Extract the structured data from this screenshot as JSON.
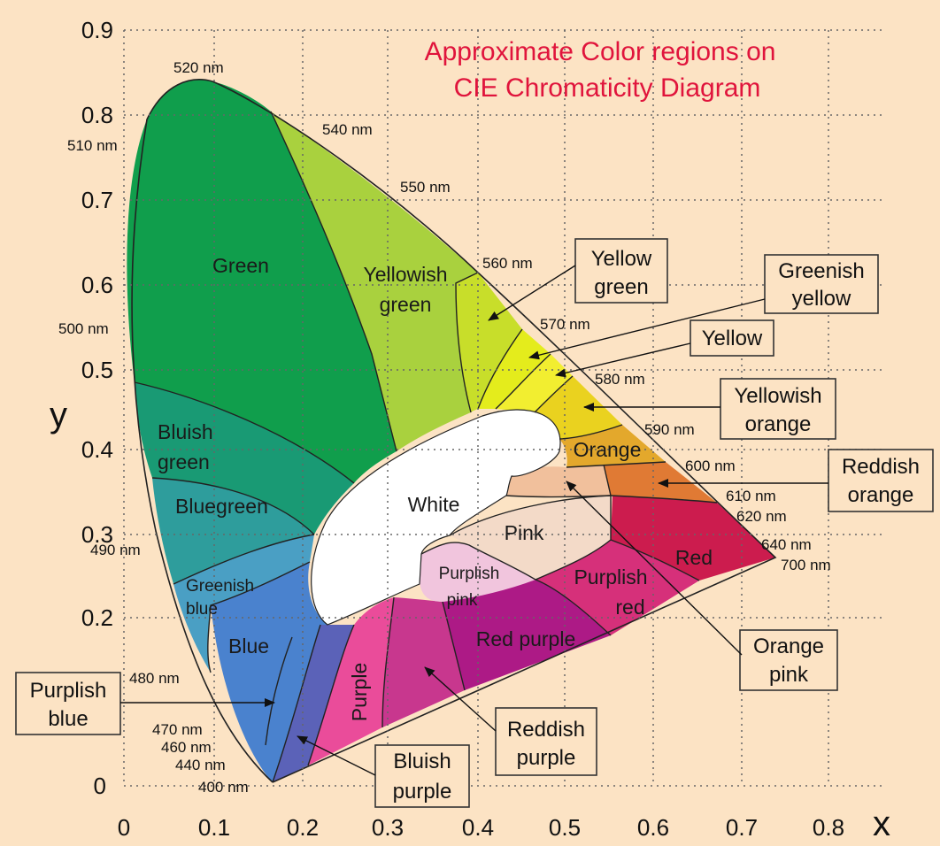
{
  "title": {
    "line1": "Approximate Color regions on",
    "line2": "CIE Chromaticity Diagram"
  },
  "axes": {
    "x_label": "x",
    "y_label": "y",
    "x_ticks": [
      "0",
      "0.1",
      "0.2",
      "0.3",
      "0.4",
      "0.5",
      "0.6",
      "0.7",
      "0.8"
    ],
    "y_ticks": [
      "0",
      "0.2",
      "0.3",
      "0.4",
      "0.5",
      "0.6",
      "0.7",
      "0.8",
      "0.9"
    ]
  },
  "wavelengths": {
    "w520": "520 nm",
    "w510": "510 nm",
    "w540": "540 nm",
    "w550": "550 nm",
    "w560": "560 nm",
    "w500": "500 nm",
    "w570": "570 nm",
    "w580": "580 nm",
    "w590": "590 nm",
    "w600": "600 nm",
    "w610": "610 nm",
    "w620": "620 nm",
    "w640": "640 nm",
    "w700": "700 nm",
    "w490": "490 nm",
    "w480": "480 nm",
    "w470": "470 nm",
    "w460": "460 nm",
    "w440": "440 nm",
    "w400": "400 nm"
  },
  "regions": {
    "green": "Green",
    "yellowish_green": [
      "Yellowish",
      "green"
    ],
    "bluish_green": [
      "Bluish",
      "green"
    ],
    "bluegreen": "Bluegreen",
    "greenish_blue": [
      "Greenish",
      "blue"
    ],
    "blue": "Blue",
    "white": "White",
    "pink": "Pink",
    "purplish_pink": [
      "Purplish",
      "pink"
    ],
    "purplish_red": [
      "Purplish",
      "red"
    ],
    "red": "Red",
    "red_purple": "Red purple",
    "purple": "Purple",
    "orange": "Orange"
  },
  "callouts": {
    "yellow_green": [
      "Yellow",
      "green"
    ],
    "greenish_yellow": [
      "Greenish",
      "yellow"
    ],
    "yellow": "Yellow",
    "yellowish_orange": [
      "Yellowish",
      "orange"
    ],
    "reddish_orange": [
      "Reddish",
      "orange"
    ],
    "orange_pink": [
      "Orange",
      "pink"
    ],
    "reddish_purple": [
      "Reddish",
      "purple"
    ],
    "bluish_purple": [
      "Bluish",
      "purple"
    ],
    "purplish_blue": [
      "Purplish",
      "blue"
    ]
  },
  "colors": {
    "background": "#fce3c4",
    "title": "#e0143c",
    "green": "#0fa04a",
    "yellowish_green": "#a6cf3c",
    "white": "#ffffff",
    "red": "#cc1c4e",
    "purple": "#e94a9a"
  }
}
